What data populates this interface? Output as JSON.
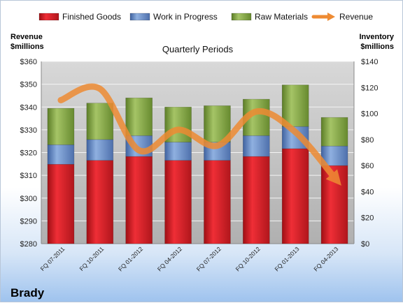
{
  "chart_data": {
    "type": "bar",
    "stacked": true,
    "title": "Quarterly Periods",
    "categories": [
      "FQ 07-2011",
      "FQ 10-2011",
      "FQ 01-2012",
      "FQ 04-2012",
      "FQ 07-2012",
      "FQ 10-2012",
      "FQ 01-2013",
      "FQ 04-2013"
    ],
    "series": [
      {
        "name": "Finished Goods",
        "axis": "right",
        "color": "#e8232d",
        "values": [
          61,
          64,
          67,
          64,
          64,
          67,
          73,
          60
        ]
      },
      {
        "name": "Work in Progress",
        "axis": "right",
        "color": "#6d93c9",
        "values": [
          15,
          16,
          16,
          14,
          14,
          16,
          17,
          15
        ]
      },
      {
        "name": "Raw Materials",
        "axis": "right",
        "color": "#8aad4a",
        "values": [
          28,
          28,
          29,
          27,
          28,
          28,
          32,
          22
        ]
      },
      {
        "name": "Revenue",
        "axis": "left",
        "type": "line",
        "color": "#ee8b33",
        "values": [
          343,
          348,
          321,
          330,
          323,
          338,
          329,
          309
        ]
      }
    ],
    "y_left": {
      "label_lines": [
        "Revenue",
        "$millions"
      ],
      "range": [
        280,
        360
      ],
      "step": 10,
      "prefix": "$"
    },
    "y_right": {
      "label_lines": [
        "Inventory",
        "$millions"
      ],
      "range": [
        0,
        140
      ],
      "step": 20,
      "prefix": "$"
    },
    "grid": true,
    "legend_position": "top"
  },
  "company": "Brady"
}
